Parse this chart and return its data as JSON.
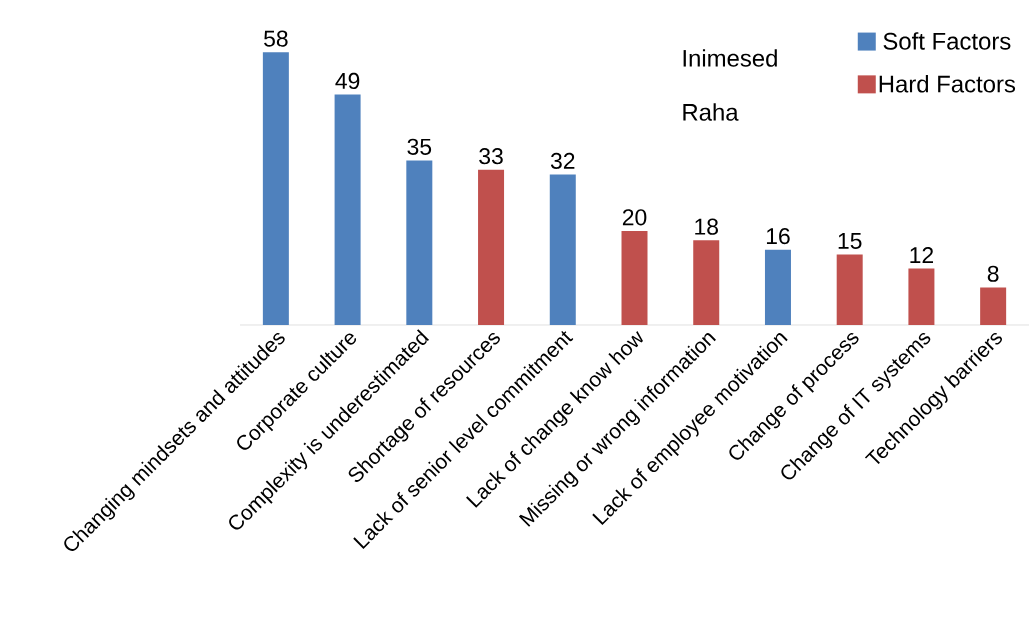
{
  "chart_data": {
    "type": "bar",
    "categories": [
      "Changing mindsets and attitudes",
      "Corporate culture",
      "Complexity is underestimated",
      "Shortage of resources",
      "Lack of senior level commitment",
      "Lack of change know how",
      "Missing or wrong information",
      "Lack of employee motivation",
      "Change of process",
      "Change of IT systems",
      "Technology barriers"
    ],
    "series": [
      {
        "name": "Soft Factors",
        "color": "#4f81bd",
        "values": [
          58,
          49,
          35,
          null,
          32,
          null,
          null,
          16,
          null,
          null,
          null
        ]
      },
      {
        "name": "Hard Factors",
        "color": "#c0504d",
        "values": [
          null,
          null,
          null,
          33,
          null,
          20,
          18,
          null,
          15,
          12,
          8
        ]
      }
    ],
    "data_labels": true,
    "legend": "top right",
    "annotations": [
      "Inimesed",
      "Raha"
    ]
  }
}
